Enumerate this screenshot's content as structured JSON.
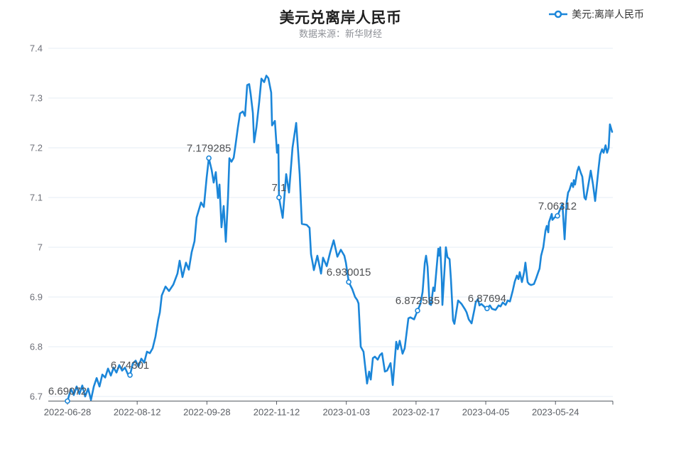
{
  "header": {
    "title": "美元兑离岸人民币",
    "subtitle": "数据来源：新华财经"
  },
  "legend": {
    "label": "美元:离岸人民币"
  },
  "colors": {
    "line": "#1b86d9",
    "grid": "#e6ecf4",
    "axis": "#565b63",
    "axis_label": "#6e7079",
    "annotation": "#4d4f52",
    "marker_fill": "#ffffff"
  },
  "chart_data": {
    "type": "line",
    "title": "美元兑离岸人民币",
    "subtitle": "数据来源：新华财经",
    "series_name": "美元:离岸人民币",
    "ylim": [
      6.69072,
      7.4
    ],
    "y_ticks": [
      6.7,
      6.8,
      6.9,
      7,
      7.1,
      7.2,
      7.3,
      7.4
    ],
    "x_ticks": [
      {
        "label": "2022-06-28",
        "t": 0
      },
      {
        "label": "2022-08-12",
        "t": 32
      },
      {
        "label": "2022-09-28",
        "t": 64
      },
      {
        "label": "2022-11-12",
        "t": 96
      },
      {
        "label": "2023-01-03",
        "t": 128
      },
      {
        "label": "2023-02-17",
        "t": 160
      },
      {
        "label": "2023-04-05",
        "t": 192
      },
      {
        "label": "2023-05-24",
        "t": 224
      }
    ],
    "t_max": 250,
    "annotations": [
      {
        "t": 0,
        "value": 6.69072,
        "label": "6.69072"
      },
      {
        "t": 28.7,
        "value": 6.74301,
        "label": "6.74301"
      },
      {
        "t": 64.9,
        "value": 7.179285,
        "label": "7.179285"
      },
      {
        "t": 97.1,
        "value": 7.1,
        "label": "7.1"
      },
      {
        "t": 129.1,
        "value": 6.930015,
        "label": "6.930015"
      },
      {
        "t": 160.7,
        "value": 6.872585,
        "label": "6.872585"
      },
      {
        "t": 192.6,
        "value": 6.87694,
        "label": "6.87694"
      },
      {
        "t": 224.9,
        "value": 7.06312,
        "label": "7.06312"
      }
    ],
    "points": [
      [
        0,
        6.69072
      ],
      [
        1.6,
        6.715
      ],
      [
        2.9,
        6.703
      ],
      [
        4.2,
        6.72
      ],
      [
        5.5,
        6.705
      ],
      [
        6.8,
        6.722
      ],
      [
        8.1,
        6.7
      ],
      [
        9.5,
        6.716
      ],
      [
        10.8,
        6.693
      ],
      [
        12.1,
        6.72
      ],
      [
        13.4,
        6.737
      ],
      [
        14.7,
        6.72
      ],
      [
        16,
        6.744
      ],
      [
        17.3,
        6.738
      ],
      [
        18.6,
        6.756
      ],
      [
        19.9,
        6.742
      ],
      [
        21.2,
        6.758
      ],
      [
        22.5,
        6.748
      ],
      [
        23.8,
        6.763
      ],
      [
        25.1,
        6.752
      ],
      [
        26.4,
        6.758
      ],
      [
        27.7,
        6.745
      ],
      [
        28.7,
        6.74301
      ],
      [
        30,
        6.766
      ],
      [
        31.3,
        6.772
      ],
      [
        32.6,
        6.76
      ],
      [
        33.9,
        6.776
      ],
      [
        35.2,
        6.768
      ],
      [
        36.5,
        6.79
      ],
      [
        37.8,
        6.787
      ],
      [
        39.1,
        6.797
      ],
      [
        40.4,
        6.82
      ],
      [
        41.7,
        6.855
      ],
      [
        42.4,
        6.869
      ],
      [
        43.3,
        6.903
      ],
      [
        45,
        6.921
      ],
      [
        46.6,
        6.912
      ],
      [
        48.6,
        6.925
      ],
      [
        50.5,
        6.947
      ],
      [
        51.5,
        6.973
      ],
      [
        52.8,
        6.94
      ],
      [
        54.4,
        6.969
      ],
      [
        55.7,
        6.955
      ],
      [
        57,
        6.99
      ],
      [
        58.3,
        7.012
      ],
      [
        59.3,
        7.06
      ],
      [
        61.3,
        7.09
      ],
      [
        62.6,
        7.081
      ],
      [
        63.9,
        7.14
      ],
      [
        64.9,
        7.179285
      ],
      [
        66.2,
        7.155
      ],
      [
        67.1,
        7.13
      ],
      [
        68.1,
        7.151
      ],
      [
        69.1,
        7.099
      ],
      [
        69.8,
        7.126
      ],
      [
        70.7,
        7.04
      ],
      [
        71.7,
        7.083
      ],
      [
        72.7,
        7.011
      ],
      [
        73.7,
        7.1
      ],
      [
        74.3,
        7.179
      ],
      [
        75.3,
        7.172
      ],
      [
        76.3,
        7.18
      ],
      [
        77.2,
        7.207
      ],
      [
        78.2,
        7.24
      ],
      [
        79.2,
        7.269
      ],
      [
        80.5,
        7.273
      ],
      [
        81.5,
        7.264
      ],
      [
        82.5,
        7.326
      ],
      [
        83.4,
        7.328
      ],
      [
        84.1,
        7.308
      ],
      [
        85.1,
        7.27
      ],
      [
        85.7,
        7.211
      ],
      [
        86.7,
        7.24
      ],
      [
        88,
        7.292
      ],
      [
        89,
        7.339
      ],
      [
        90.3,
        7.332
      ],
      [
        91.3,
        7.345
      ],
      [
        92.2,
        7.34
      ],
      [
        93.5,
        7.311
      ],
      [
        93.9,
        7.245
      ],
      [
        95.2,
        7.254
      ],
      [
        96.2,
        7.19
      ],
      [
        96.8,
        7.206
      ],
      [
        97.1,
        7.1
      ],
      [
        98.8,
        7.059
      ],
      [
        100.4,
        7.147
      ],
      [
        101.7,
        7.11
      ],
      [
        103.3,
        7.2
      ],
      [
        105,
        7.25
      ],
      [
        106.6,
        7.147
      ],
      [
        107.6,
        7.047
      ],
      [
        109.8,
        7.045
      ],
      [
        111.1,
        7.039
      ],
      [
        111.8,
        6.986
      ],
      [
        112.5,
        6.969
      ],
      [
        113.1,
        6.954
      ],
      [
        114.7,
        6.983
      ],
      [
        116.4,
        6.947
      ],
      [
        117.3,
        6.979
      ],
      [
        119,
        6.962
      ],
      [
        120.6,
        6.99
      ],
      [
        122.2,
        7.014
      ],
      [
        123.9,
        6.981
      ],
      [
        125.5,
        6.995
      ],
      [
        127.1,
        6.983
      ],
      [
        127.8,
        6.969
      ],
      [
        129.1,
        6.930015
      ],
      [
        130.7,
        6.916
      ],
      [
        132,
        6.9
      ],
      [
        133,
        6.894
      ],
      [
        133.6,
        6.887
      ],
      [
        134.6,
        6.8
      ],
      [
        135.9,
        6.79
      ],
      [
        137.5,
        6.726
      ],
      [
        138.5,
        6.75
      ],
      [
        139.2,
        6.734
      ],
      [
        140.2,
        6.777
      ],
      [
        141.1,
        6.78
      ],
      [
        142.4,
        6.774
      ],
      [
        143.4,
        6.783
      ],
      [
        144.4,
        6.787
      ],
      [
        145.7,
        6.75
      ],
      [
        146.7,
        6.752
      ],
      [
        148.3,
        6.767
      ],
      [
        149.3,
        6.723
      ],
      [
        150.9,
        6.81
      ],
      [
        151.6,
        6.795
      ],
      [
        152.5,
        6.812
      ],
      [
        153.8,
        6.786
      ],
      [
        154.8,
        6.797
      ],
      [
        156.5,
        6.857
      ],
      [
        157.4,
        6.859
      ],
      [
        159.1,
        6.855
      ],
      [
        160.7,
        6.872585
      ],
      [
        162,
        6.886
      ],
      [
        163,
        6.91
      ],
      [
        164,
        6.968
      ],
      [
        164.6,
        6.983
      ],
      [
        165.3,
        6.961
      ],
      [
        166.2,
        6.886
      ],
      [
        166.9,
        6.884
      ],
      [
        167.9,
        6.919
      ],
      [
        168.5,
        6.912
      ],
      [
        170.2,
        6.997
      ],
      [
        170.5,
        6.983
      ],
      [
        171.1,
        7.0
      ],
      [
        171.8,
        6.936
      ],
      [
        172.1,
        6.884
      ],
      [
        173.7,
        7.0
      ],
      [
        174.4,
        6.98
      ],
      [
        175.4,
        6.976
      ],
      [
        176,
        6.936
      ],
      [
        177,
        6.853
      ],
      [
        177.6,
        6.846
      ],
      [
        179.3,
        6.893
      ],
      [
        180.9,
        6.886
      ],
      [
        182.5,
        6.875
      ],
      [
        183.2,
        6.869
      ],
      [
        184.2,
        6.855
      ],
      [
        185.5,
        6.847
      ],
      [
        186.8,
        6.875
      ],
      [
        187.4,
        6.889
      ],
      [
        188.4,
        6.896
      ],
      [
        189.1,
        6.883
      ],
      [
        190,
        6.886
      ],
      [
        191.7,
        6.879
      ],
      [
        192.6,
        6.87694
      ],
      [
        193.9,
        6.883
      ],
      [
        194.9,
        6.876
      ],
      [
        196.5,
        6.874
      ],
      [
        197.9,
        6.883
      ],
      [
        198.8,
        6.881
      ],
      [
        199.8,
        6.889
      ],
      [
        201.1,
        6.884
      ],
      [
        202.1,
        6.893
      ],
      [
        203.1,
        6.891
      ],
      [
        204.4,
        6.913
      ],
      [
        205.3,
        6.931
      ],
      [
        206.3,
        6.943
      ],
      [
        207,
        6.936
      ],
      [
        207.6,
        6.95
      ],
      [
        208.6,
        6.93
      ],
      [
        209.6,
        6.95
      ],
      [
        210.2,
        6.969
      ],
      [
        211.2,
        6.93
      ],
      [
        211.9,
        6.926
      ],
      [
        212.8,
        6.924
      ],
      [
        214.1,
        6.926
      ],
      [
        215.1,
        6.937
      ],
      [
        216.1,
        6.95
      ],
      [
        216.7,
        6.957
      ],
      [
        217.4,
        6.983
      ],
      [
        218.4,
        7.0
      ],
      [
        219.4,
        7.033
      ],
      [
        220,
        7.043
      ],
      [
        220.7,
        7.03
      ],
      [
        221,
        7.05
      ],
      [
        222.3,
        7.067
      ],
      [
        222.6,
        7.055
      ],
      [
        223.6,
        7.06
      ],
      [
        224.9,
        7.06312
      ],
      [
        225.9,
        7.074
      ],
      [
        227.2,
        7.087
      ],
      [
        228.2,
        7.016
      ],
      [
        229.1,
        7.09
      ],
      [
        229.8,
        7.11
      ],
      [
        230.4,
        7.115
      ],
      [
        231.4,
        7.129
      ],
      [
        232.1,
        7.121
      ],
      [
        232.4,
        7.135
      ],
      [
        233,
        7.126
      ],
      [
        234,
        7.153
      ],
      [
        234.7,
        7.162
      ],
      [
        235.6,
        7.15
      ],
      [
        236.3,
        7.142
      ],
      [
        237.3,
        7.1
      ],
      [
        237.9,
        7.096
      ],
      [
        238.9,
        7.12
      ],
      [
        240.2,
        7.154
      ],
      [
        241.2,
        7.127
      ],
      [
        242.2,
        7.093
      ],
      [
        243.8,
        7.16
      ],
      [
        244.5,
        7.186
      ],
      [
        245.4,
        7.197
      ],
      [
        246.1,
        7.19
      ],
      [
        247,
        7.205
      ],
      [
        247.7,
        7.19
      ],
      [
        248.4,
        7.2
      ],
      [
        249,
        7.247
      ],
      [
        250,
        7.232
      ]
    ]
  }
}
